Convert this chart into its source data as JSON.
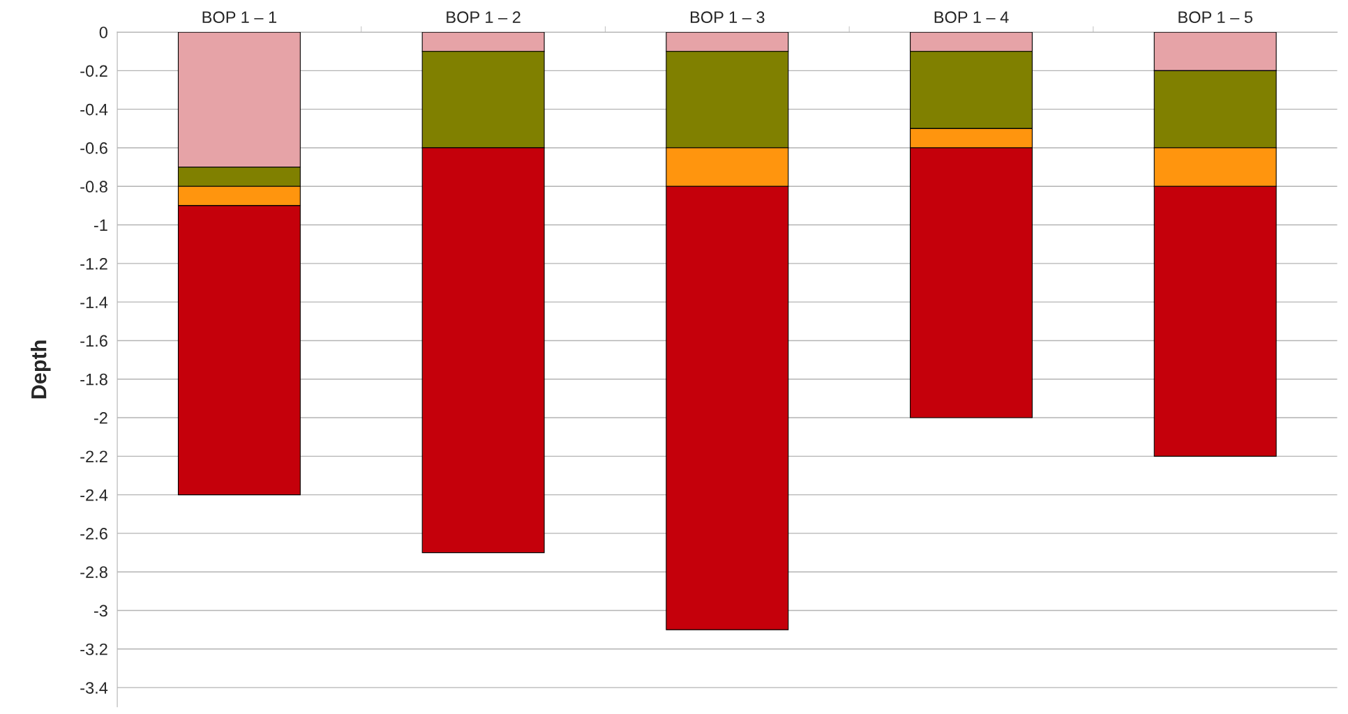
{
  "chart_data": {
    "type": "bar",
    "stacked": true,
    "ylabel": "Depth",
    "categories": [
      "BOP 1 – 1",
      "BOP 1 – 2",
      "BOP 1 – 3",
      "BOP 1 – 4",
      "BOP 1 – 5"
    ],
    "series": [
      {
        "color": "#e6a3a7",
        "values": [
          -0.7,
          -0.1,
          -0.1,
          -0.1,
          -0.2
        ]
      },
      {
        "color": "#808000",
        "values": [
          -0.1,
          -0.5,
          -0.5,
          -0.4,
          -0.4
        ]
      },
      {
        "color": "#ff950e",
        "values": [
          -0.1,
          0,
          -0.2,
          -0.1,
          -0.2
        ]
      },
      {
        "color": "#c5000b",
        "values": [
          -1.5,
          -2.1,
          -2.3,
          -1.4,
          -1.4
        ]
      }
    ],
    "ylim": [
      -3.5,
      0
    ],
    "yticks": [
      0,
      -0.2,
      -0.4,
      -0.6,
      -0.8,
      -1,
      -1.2,
      -1.4,
      -1.6,
      -1.8,
      -2,
      -2.2,
      -2.4,
      -2.6,
      -2.8,
      -3,
      -3.2,
      -3.4
    ],
    "grid": "y",
    "legend": false
  }
}
